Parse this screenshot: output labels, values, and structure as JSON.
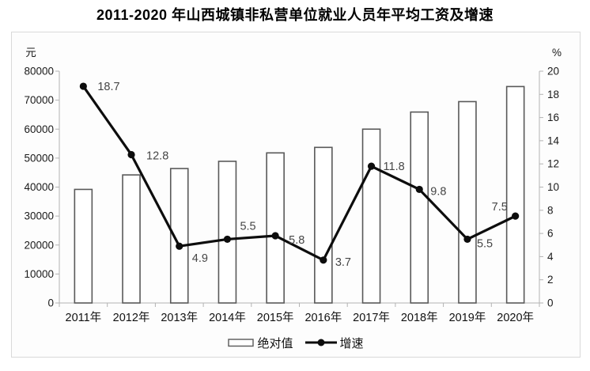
{
  "title": "2011-2020 年山西城镇非私营单位就业人员年平均工资及增速",
  "chart_data": {
    "type": "bar",
    "subtype": "bar-line-combo",
    "title": "2011-2020 年山西城镇非私营单位就业人员年平均工资及增速",
    "categories": [
      "2011年",
      "2012年",
      "2013年",
      "2014年",
      "2015年",
      "2016年",
      "2017年",
      "2018年",
      "2019年",
      "2020年"
    ],
    "series": [
      {
        "name": "绝对值",
        "type": "bar",
        "axis": "left",
        "unit": "元",
        "fill": "#ffffff",
        "stroke": "#595959",
        "values": [
          39200,
          44200,
          46400,
          48900,
          51800,
          53700,
          60000,
          65900,
          69500,
          74700
        ],
        "values_are_estimates_from_axis": true
      },
      {
        "name": "增速",
        "type": "line",
        "axis": "right",
        "unit": "%",
        "color": "#0d0d0d",
        "label_color": "#464646",
        "values": [
          18.7,
          12.8,
          4.9,
          5.5,
          5.8,
          3.7,
          11.8,
          9.8,
          5.5,
          7.5
        ],
        "point_labels": [
          "18.7",
          "12.8",
          "4.9",
          "5.5",
          "5.8",
          "3.7",
          "11.8",
          "9.8",
          "5.5",
          "7.5"
        ],
        "label_offsets": [
          [
            18,
            5
          ],
          [
            19,
            6
          ],
          [
            16,
            20
          ],
          [
            16,
            -12
          ],
          [
            17,
            10
          ],
          [
            15,
            7
          ],
          [
            15,
            5
          ],
          [
            14,
            7
          ],
          [
            12,
            10
          ],
          [
            -30,
            -7
          ]
        ]
      }
    ],
    "left_axis": {
      "unit": "元",
      "min": 0,
      "max": 80000,
      "step": 10000,
      "tick_labels": [
        "0",
        "10000",
        "20000",
        "30000",
        "40000",
        "50000",
        "60000",
        "70000",
        "80000"
      ]
    },
    "right_axis": {
      "unit": "%",
      "min": 0,
      "max": 20,
      "step": 2,
      "tick_labels": [
        "0",
        "2",
        "4",
        "6",
        "8",
        "10",
        "12",
        "14",
        "16",
        "18",
        "20"
      ]
    },
    "grid": false,
    "legend_position": "bottom"
  },
  "colors": {
    "axis_line": "#b3b3b3",
    "panel_border": "#d9d9d9",
    "tick_text": "#1a1a1a"
  }
}
